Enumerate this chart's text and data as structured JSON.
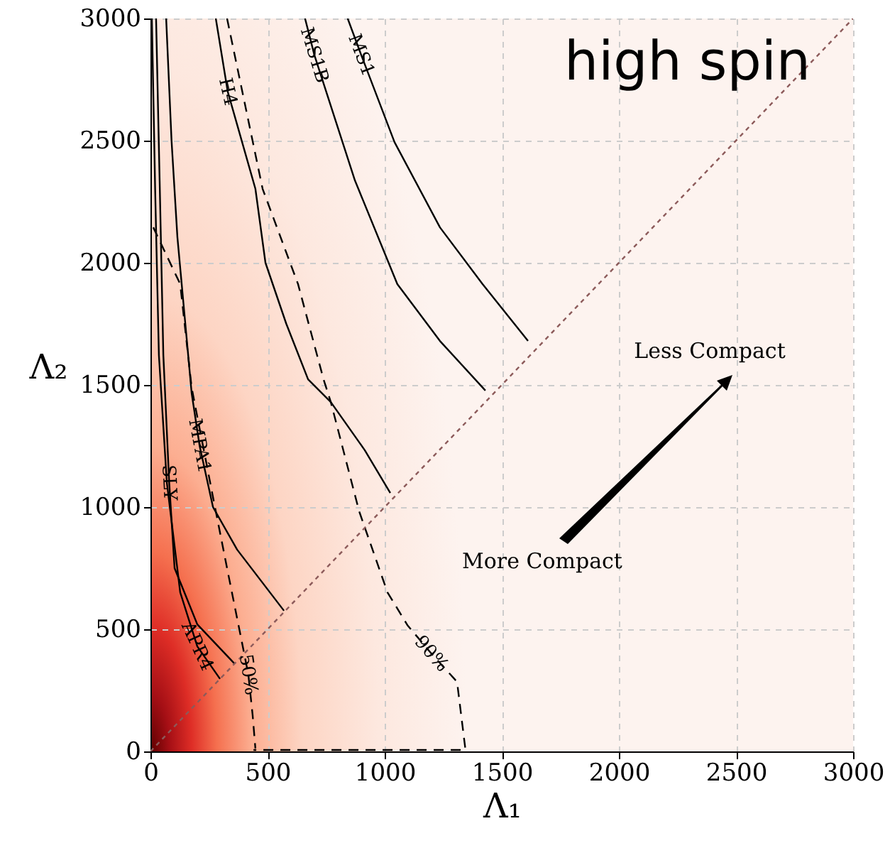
{
  "chart_data": {
    "type": "line",
    "title": "high spin",
    "xlabel": "Λ₁",
    "ylabel": "Λ₂",
    "xlim": [
      0,
      3000
    ],
    "ylim": [
      0,
      3000
    ],
    "xticks": [
      0,
      500,
      1000,
      1500,
      2000,
      2500,
      3000
    ],
    "yticks": [
      0,
      500,
      1000,
      1500,
      2000,
      2500,
      3000
    ],
    "grid": true,
    "marker": "none",
    "annotations": [
      "Less Compact",
      "More Compact"
    ],
    "series": [
      {
        "name": "APR4",
        "color": "#000000",
        "line_style": "solid",
        "x": [
          6,
          20,
          36,
          70,
          127,
          200,
          297
        ],
        "values": [
          3000,
          2300,
          1622,
          1100,
          651,
          430,
          297
        ]
      },
      {
        "name": "SLY",
        "color": "#000000",
        "line_style": "solid",
        "x": [
          24,
          40,
          55,
          80,
          103,
          200,
          358
        ],
        "values": [
          3000,
          2300,
          1622,
          1100,
          750,
          520,
          360
        ]
      },
      {
        "name": "MPA1",
        "color": "#000000",
        "line_style": "solid",
        "x": [
          67,
          90,
          115,
          176,
          210,
          267,
          370,
          570
        ],
        "values": [
          3000,
          2500,
          2105,
          1465,
          1250,
          1000,
          826,
          576
        ]
      },
      {
        "name": "H4",
        "color": "#000000",
        "line_style": "solid",
        "x": [
          279,
          330,
          448,
          491,
          580,
          673,
          770,
          915,
          1024
        ],
        "values": [
          3000,
          2700,
          2303,
          2000,
          1750,
          1523,
          1430,
          1233,
          1058
        ]
      },
      {
        "name": "MS1B",
        "color": "#000000",
        "line_style": "solid",
        "x": [
          660,
          700,
          873,
          1054,
          1236,
          1430
        ],
        "values": [
          3000,
          2850,
          2337,
          1913,
          1680,
          1477
        ]
      },
      {
        "name": "MS1",
        "color": "#000000",
        "line_style": "solid",
        "x": [
          842,
          900,
          1042,
          1236,
          1418,
          1612
        ],
        "values": [
          3000,
          2850,
          2494,
          2145,
          1913,
          1680
        ]
      },
      {
        "name": "50%",
        "color": "#000000",
        "line_style": "dashed",
        "x": [
          12,
          127,
          176,
          267,
          327,
          388,
          418,
          436,
          448
        ],
        "values": [
          2145,
          1913,
          1488,
          1041,
          750,
          459,
          314,
          151,
          12
        ]
      },
      {
        "name": "90%",
        "color": "#000000",
        "line_style": "dashed",
        "x": [
          327,
          479,
          630,
          739,
          770,
          891,
          1012,
          1097,
          1200,
          1309,
          1345,
          440
        ],
        "values": [
          3000,
          2302,
          1913,
          1523,
          1430,
          983,
          651,
          517,
          400,
          285,
          6,
          6
        ]
      },
      {
        "color": "#8c5a5a",
        "line_style": "dotted",
        "x": [
          0,
          3000
        ],
        "values": [
          0,
          3000
        ]
      }
    ]
  }
}
